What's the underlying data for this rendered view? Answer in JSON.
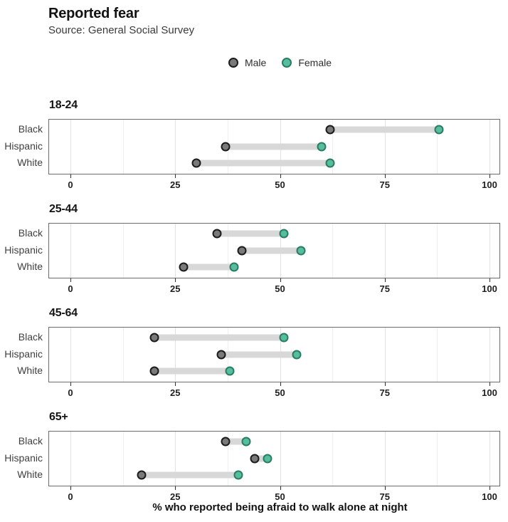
{
  "title": "Reported fear",
  "subtitle": "Source: General Social Survey",
  "xlabel": "% who reported being afraid to walk alone at night",
  "legend": {
    "items": [
      {
        "label": "Male",
        "color_key": "male"
      },
      {
        "label": "Female",
        "color_key": "female"
      }
    ]
  },
  "colors": {
    "male": "#7a7a7a",
    "male_stroke": "#1c1c1c",
    "female": "#56be9e",
    "female_stroke": "#2a7c62",
    "connector": "#d8d8d8",
    "panel_border": "#6b6b6b",
    "grid_major": "#e2e2e2",
    "grid_minor": "#f0f0f0"
  },
  "chart_data": {
    "type": "scatter",
    "variant": "dumbbell",
    "title": "Reported fear",
    "subtitle": "Source: General Social Survey",
    "xlabel": "% who reported being afraid to walk alone at night",
    "xlim": [
      0,
      100
    ],
    "x_ticks": [
      0,
      25,
      50,
      75,
      100
    ],
    "x_minor": [
      12.5,
      37.5,
      62.5,
      87.5
    ],
    "grid": true,
    "legend_entries": [
      "Male",
      "Female"
    ],
    "legend_position": "top-center",
    "facets": [
      {
        "age_group": "18-24",
        "categories": [
          "Black",
          "Hispanic",
          "White"
        ],
        "series": [
          {
            "name": "Male",
            "values": [
              62,
              37,
              30
            ]
          },
          {
            "name": "Female",
            "values": [
              88,
              60,
              62
            ]
          }
        ]
      },
      {
        "age_group": "25-44",
        "categories": [
          "Black",
          "Hispanic",
          "White"
        ],
        "series": [
          {
            "name": "Male",
            "values": [
              35,
              41,
              27
            ]
          },
          {
            "name": "Female",
            "values": [
              51,
              55,
              39
            ]
          }
        ]
      },
      {
        "age_group": "45-64",
        "categories": [
          "Black",
          "Hispanic",
          "White"
        ],
        "series": [
          {
            "name": "Male",
            "values": [
              20,
              36,
              20
            ]
          },
          {
            "name": "Female",
            "values": [
              51,
              54,
              38
            ]
          }
        ]
      },
      {
        "age_group": "65+",
        "categories": [
          "Black",
          "Hispanic",
          "White"
        ],
        "series": [
          {
            "name": "Male",
            "values": [
              37,
              44,
              17
            ]
          },
          {
            "name": "Female",
            "values": [
              42,
              47,
              40
            ]
          }
        ]
      }
    ]
  }
}
